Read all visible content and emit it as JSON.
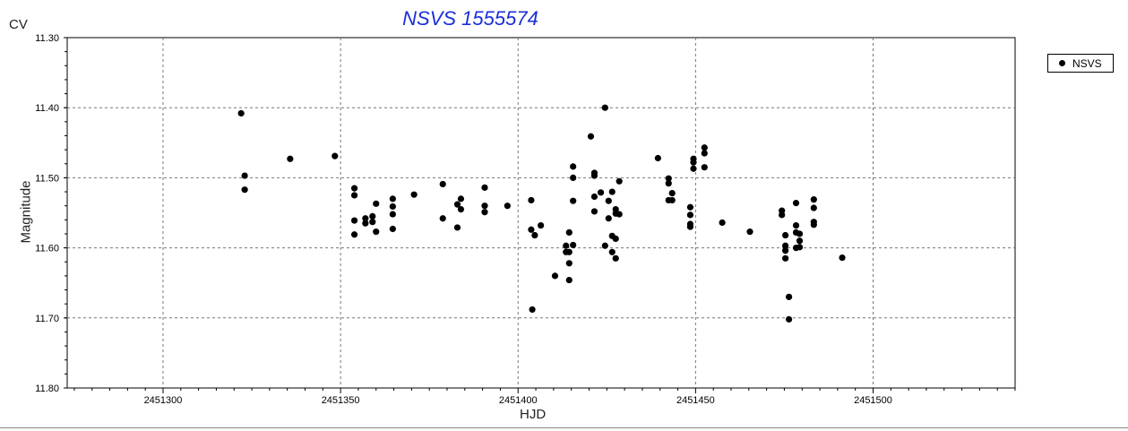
{
  "chart_data": {
    "type": "scatter",
    "title": "NSVS 1555574",
    "unit_label": "CV",
    "xlabel": "HJD",
    "ylabel": "Magnitude",
    "xlim": [
      2451273,
      2451540
    ],
    "ylim": [
      11.3,
      11.8
    ],
    "y_inverted": true,
    "xticks": [
      2451300,
      2451350,
      2451400,
      2451450,
      2451500
    ],
    "yticks": [
      "11.30",
      "11.40",
      "11.50",
      "11.60",
      "11.70",
      "11.80"
    ],
    "grid": true,
    "legend_position": "top-right",
    "series": [
      {
        "name": "NSVS",
        "color": "#000000",
        "points": [
          [
            2451322.0,
            11.408
          ],
          [
            2451323.0,
            11.497
          ],
          [
            2451323.0,
            11.517
          ],
          [
            2451335.8,
            11.473
          ],
          [
            2451348.4,
            11.469
          ],
          [
            2451353.9,
            11.515
          ],
          [
            2451353.9,
            11.525
          ],
          [
            2451353.9,
            11.561
          ],
          [
            2451353.9,
            11.581
          ],
          [
            2451357.0,
            11.558
          ],
          [
            2451357.0,
            11.565
          ],
          [
            2451359.0,
            11.555
          ],
          [
            2451359.0,
            11.563
          ],
          [
            2451360.0,
            11.537
          ],
          [
            2451360.0,
            11.577
          ],
          [
            2451364.7,
            11.53
          ],
          [
            2451364.7,
            11.541
          ],
          [
            2451364.7,
            11.552
          ],
          [
            2451364.7,
            11.573
          ],
          [
            2451370.7,
            11.524
          ],
          [
            2451378.8,
            11.509
          ],
          [
            2451378.8,
            11.558
          ],
          [
            2451382.9,
            11.538
          ],
          [
            2451382.9,
            11.571
          ],
          [
            2451383.9,
            11.53
          ],
          [
            2451383.9,
            11.545
          ],
          [
            2451390.6,
            11.514
          ],
          [
            2451390.6,
            11.54
          ],
          [
            2451390.6,
            11.549
          ],
          [
            2451397.0,
            11.54
          ],
          [
            2451403.7,
            11.532
          ],
          [
            2451403.7,
            11.574
          ],
          [
            2451404.7,
            11.582
          ],
          [
            2451404.0,
            11.688
          ],
          [
            2451406.4,
            11.568
          ],
          [
            2451410.4,
            11.64
          ],
          [
            2451413.5,
            11.597
          ],
          [
            2451413.5,
            11.606
          ],
          [
            2451414.4,
            11.578
          ],
          [
            2451414.4,
            11.606
          ],
          [
            2451414.4,
            11.622
          ],
          [
            2451414.4,
            11.646
          ],
          [
            2451415.5,
            11.484
          ],
          [
            2451415.5,
            11.5
          ],
          [
            2451415.5,
            11.533
          ],
          [
            2451415.5,
            11.596
          ],
          [
            2451420.5,
            11.441
          ],
          [
            2451421.5,
            11.493
          ],
          [
            2451421.5,
            11.497
          ],
          [
            2451421.5,
            11.527
          ],
          [
            2451421.5,
            11.548
          ],
          [
            2451423.3,
            11.521
          ],
          [
            2451424.5,
            11.4
          ],
          [
            2451424.5,
            11.597
          ],
          [
            2451425.5,
            11.533
          ],
          [
            2451425.5,
            11.558
          ],
          [
            2451426.5,
            11.52
          ],
          [
            2451426.5,
            11.583
          ],
          [
            2451426.5,
            11.606
          ],
          [
            2451427.5,
            11.545
          ],
          [
            2451427.5,
            11.551
          ],
          [
            2451427.5,
            11.587
          ],
          [
            2451427.5,
            11.615
          ],
          [
            2451428.5,
            11.505
          ],
          [
            2451428.5,
            11.552
          ],
          [
            2451439.4,
            11.472
          ],
          [
            2451442.4,
            11.501
          ],
          [
            2451442.4,
            11.508
          ],
          [
            2451442.4,
            11.532
          ],
          [
            2451443.4,
            11.522
          ],
          [
            2451443.4,
            11.532
          ],
          [
            2451448.5,
            11.542
          ],
          [
            2451448.5,
            11.553
          ],
          [
            2451448.5,
            11.566
          ],
          [
            2451448.5,
            11.57
          ],
          [
            2451449.4,
            11.473
          ],
          [
            2451449.4,
            11.478
          ],
          [
            2451449.4,
            11.487
          ],
          [
            2451452.5,
            11.457
          ],
          [
            2451452.5,
            11.465
          ],
          [
            2451452.5,
            11.485
          ],
          [
            2451457.5,
            11.564
          ],
          [
            2451465.3,
            11.577
          ],
          [
            2451474.3,
            11.547
          ],
          [
            2451474.3,
            11.553
          ],
          [
            2451475.3,
            11.582
          ],
          [
            2451475.3,
            11.597
          ],
          [
            2451475.3,
            11.604
          ],
          [
            2451475.3,
            11.615
          ],
          [
            2451476.3,
            11.67
          ],
          [
            2451476.3,
            11.702
          ],
          [
            2451478.3,
            11.536
          ],
          [
            2451478.3,
            11.568
          ],
          [
            2451478.3,
            11.578
          ],
          [
            2451478.3,
            11.6
          ],
          [
            2451479.3,
            11.58
          ],
          [
            2451479.3,
            11.59
          ],
          [
            2451479.3,
            11.599
          ],
          [
            2451483.3,
            11.531
          ],
          [
            2451483.3,
            11.543
          ],
          [
            2451483.3,
            11.563
          ],
          [
            2451483.3,
            11.567
          ],
          [
            2451491.3,
            11.614
          ]
        ]
      }
    ]
  }
}
